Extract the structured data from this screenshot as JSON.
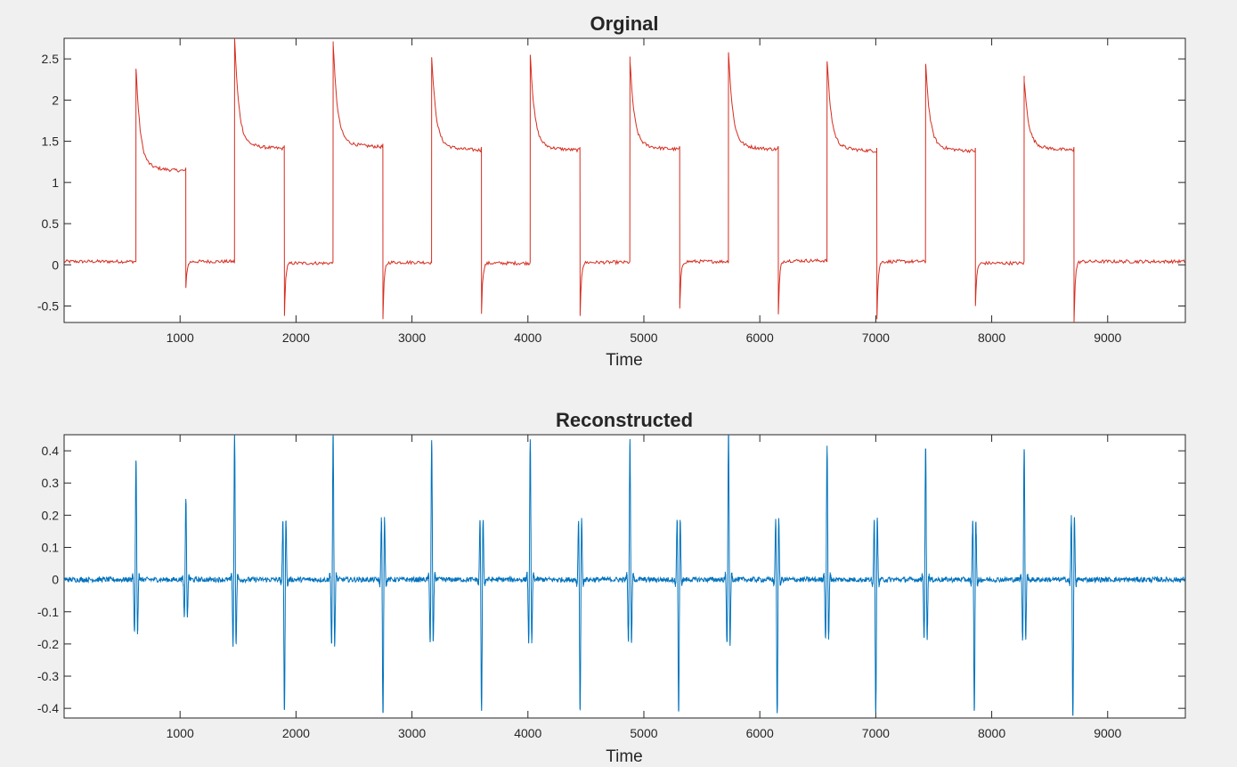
{
  "chart_data": [
    {
      "type": "line",
      "title": "Orginal",
      "xlabel": "Time",
      "ylabel": "",
      "xlim": [
        0,
        9670
      ],
      "ylim": [
        -0.7,
        2.75
      ],
      "grid": false,
      "color": "#d62d20",
      "xticks": [
        1000,
        2000,
        3000,
        4000,
        5000,
        6000,
        7000,
        8000,
        9000
      ],
      "xtick_labels": [
        "1000",
        "2000",
        "3000",
        "4000",
        "5000",
        "6000",
        "7000",
        "8000",
        "9000"
      ],
      "yticks": [
        -0.5,
        0,
        0.5,
        1,
        1.5,
        2,
        2.5
      ],
      "ytick_labels": [
        "-0.5",
        "0",
        "0.5",
        "1",
        "1.5",
        "2",
        "2.5"
      ],
      "pulse_width": 430,
      "pulses": [
        {
          "start": 620,
          "peak": 2.38,
          "plateau": 1.18,
          "end_dip": -0.28,
          "baseline": 0.04
        },
        {
          "start": 1470,
          "peak": 2.75,
          "plateau": 1.45,
          "end_dip": -0.62,
          "baseline": 0.02
        },
        {
          "start": 2320,
          "peak": 2.68,
          "plateau": 1.47,
          "end_dip": -0.66,
          "baseline": 0.03
        },
        {
          "start": 3170,
          "peak": 2.52,
          "plateau": 1.43,
          "end_dip": -0.58,
          "baseline": 0.02
        },
        {
          "start": 4020,
          "peak": 2.55,
          "plateau": 1.43,
          "end_dip": -0.62,
          "baseline": 0.03
        },
        {
          "start": 4880,
          "peak": 2.47,
          "plateau": 1.44,
          "end_dip": -0.53,
          "baseline": 0.04
        },
        {
          "start": 5730,
          "peak": 2.58,
          "plateau": 1.44,
          "end_dip": -0.6,
          "baseline": 0.05
        },
        {
          "start": 6580,
          "peak": 2.47,
          "plateau": 1.42,
          "end_dip": -0.66,
          "baseline": 0.04
        },
        {
          "start": 7430,
          "peak": 2.44,
          "plateau": 1.42,
          "end_dip": -0.5,
          "baseline": 0.02
        },
        {
          "start": 8280,
          "peak": 2.23,
          "plateau": 1.43,
          "end_dip": -0.7,
          "baseline": 0.04
        }
      ],
      "final_baseline": 0.03
    },
    {
      "type": "line",
      "title": "Reconstructed",
      "xlabel": "Time",
      "ylabel": "",
      "xlim": [
        0,
        9670
      ],
      "ylim": [
        -0.43,
        0.45
      ],
      "grid": false,
      "color": "#0072bd",
      "xticks": [
        1000,
        2000,
        3000,
        4000,
        5000,
        6000,
        7000,
        8000,
        9000
      ],
      "xtick_labels": [
        "1000",
        "2000",
        "3000",
        "4000",
        "5000",
        "6000",
        "7000",
        "8000",
        "9000"
      ],
      "yticks": [
        -0.4,
        -0.3,
        -0.2,
        -0.1,
        0,
        0.1,
        0.2,
        0.3,
        0.4
      ],
      "ytick_labels": [
        "-0.4",
        "-0.3",
        "-0.2",
        "-0.1",
        "0",
        "0.1",
        "0.2",
        "0.3",
        "0.4"
      ],
      "transients": [
        {
          "x": 620,
          "amp": 0.37,
          "sign": 1
        },
        {
          "x": 1050,
          "amp": 0.25,
          "sign": 1
        },
        {
          "x": 1470,
          "amp": 0.45,
          "sign": 1
        },
        {
          "x": 1900,
          "amp": 0.41,
          "sign": -1
        },
        {
          "x": 2320,
          "amp": 0.45,
          "sign": 1
        },
        {
          "x": 2750,
          "amp": 0.42,
          "sign": -1
        },
        {
          "x": 3170,
          "amp": 0.43,
          "sign": 1
        },
        {
          "x": 3600,
          "amp": 0.41,
          "sign": -1
        },
        {
          "x": 4020,
          "amp": 0.43,
          "sign": 1
        },
        {
          "x": 4450,
          "amp": 0.41,
          "sign": -1
        },
        {
          "x": 4880,
          "amp": 0.43,
          "sign": 1
        },
        {
          "x": 5300,
          "amp": 0.41,
          "sign": -1
        },
        {
          "x": 5730,
          "amp": 0.45,
          "sign": 1
        },
        {
          "x": 6150,
          "amp": 0.42,
          "sign": -1
        },
        {
          "x": 6580,
          "amp": 0.41,
          "sign": 1
        },
        {
          "x": 7000,
          "amp": 0.42,
          "sign": -1
        },
        {
          "x": 7430,
          "amp": 0.41,
          "sign": 1
        },
        {
          "x": 7850,
          "amp": 0.41,
          "sign": -1
        },
        {
          "x": 8280,
          "amp": 0.41,
          "sign": 1
        },
        {
          "x": 8700,
          "amp": 0.43,
          "sign": -1
        }
      ]
    }
  ]
}
